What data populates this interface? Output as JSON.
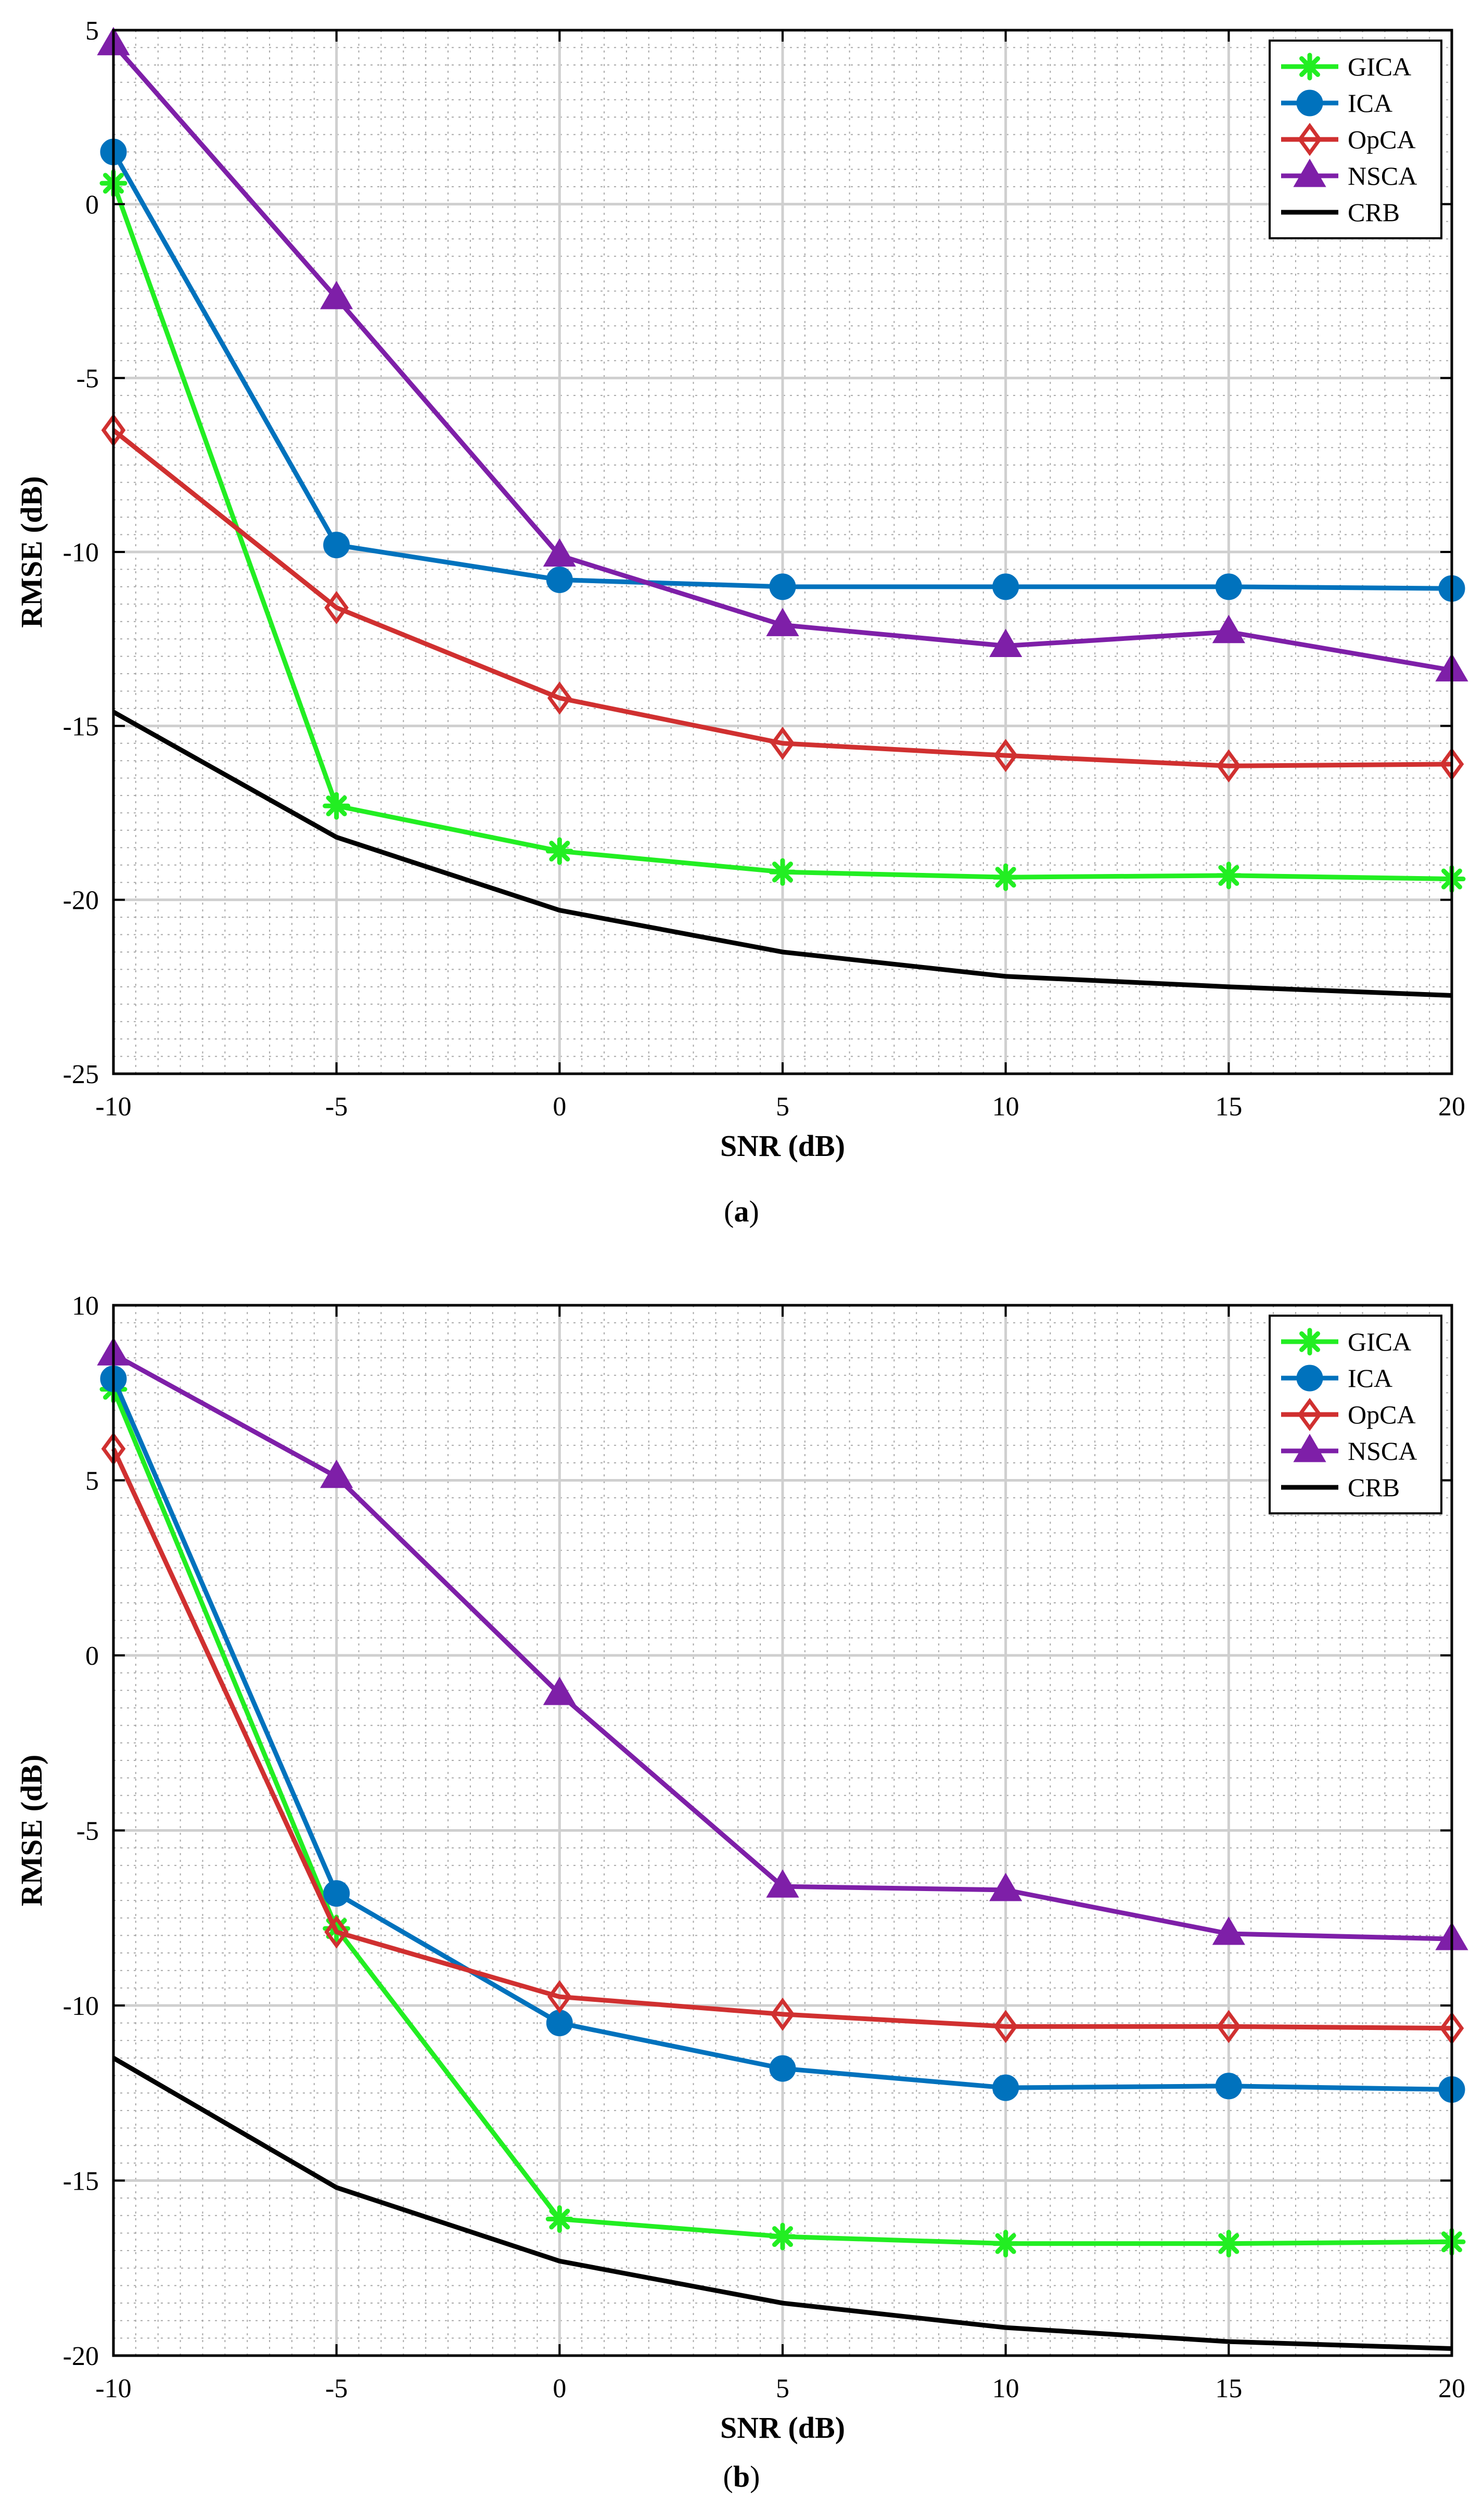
{
  "chart_data": [
    {
      "type": "line",
      "caption_letter": "a",
      "xlabel": "SNR (dB)",
      "ylabel": "RMSE (dB)",
      "xlim": [
        -10,
        20
      ],
      "ylim": [
        -25,
        5
      ],
      "xticks": [
        -10,
        -5,
        0,
        5,
        10,
        15,
        20
      ],
      "yticks": [
        -25,
        -20,
        -15,
        -10,
        -5,
        0,
        5
      ],
      "grid": true,
      "legend_position": "top-right",
      "x": [
        -10,
        -5,
        0,
        5,
        10,
        15,
        20
      ],
      "series": [
        {
          "name": "GICA",
          "color": "#22ee22",
          "marker": "asterisk",
          "values": [
            0.6,
            -17.3,
            -18.6,
            -19.2,
            -19.35,
            -19.3,
            -19.4
          ]
        },
        {
          "name": "ICA",
          "color": "#0072bd",
          "marker": "circle",
          "values": [
            1.5,
            -9.8,
            -10.8,
            -11.0,
            -11.0,
            -11.0,
            -11.05
          ]
        },
        {
          "name": "OpCA",
          "color": "#d03030",
          "marker": "diamond",
          "values": [
            -6.5,
            -11.6,
            -14.2,
            -15.5,
            -15.85,
            -16.15,
            -16.1
          ]
        },
        {
          "name": "NSCA",
          "color": "#7e1fa8",
          "marker": "triangle",
          "values": [
            4.6,
            -2.7,
            -10.1,
            -12.1,
            -12.7,
            -12.3,
            -13.4
          ]
        },
        {
          "name": "CRB",
          "color": "#000000",
          "marker": "none",
          "values": [
            -14.6,
            -18.2,
            -20.3,
            -21.5,
            -22.2,
            -22.5,
            -22.75
          ]
        }
      ]
    },
    {
      "type": "line",
      "caption_letter": "b",
      "xlabel": "SNR (dB)",
      "ylabel": "RMSE (dB)",
      "xlim": [
        -10,
        20
      ],
      "ylim": [
        -20,
        10
      ],
      "xticks": [
        -10,
        -5,
        0,
        5,
        10,
        15,
        20
      ],
      "yticks": [
        -20,
        -15,
        -10,
        -5,
        0,
        5,
        10
      ],
      "grid": true,
      "legend_position": "top-right",
      "x": [
        -10,
        -5,
        0,
        5,
        10,
        15,
        20
      ],
      "series": [
        {
          "name": "GICA",
          "color": "#22ee22",
          "marker": "asterisk",
          "values": [
            7.6,
            -7.8,
            -16.1,
            -16.6,
            -16.8,
            -16.8,
            -16.75
          ]
        },
        {
          "name": "ICA",
          "color": "#0072bd",
          "marker": "circle",
          "values": [
            7.9,
            -6.8,
            -10.5,
            -11.8,
            -12.35,
            -12.3,
            -12.4
          ]
        },
        {
          "name": "OpCA",
          "color": "#d03030",
          "marker": "diamond",
          "values": [
            5.9,
            -7.9,
            -9.75,
            -10.25,
            -10.6,
            -10.6,
            -10.65
          ]
        },
        {
          "name": "NSCA",
          "color": "#7e1fa8",
          "marker": "triangle",
          "values": [
            8.6,
            5.1,
            -1.1,
            -6.6,
            -6.7,
            -7.95,
            -8.1
          ]
        },
        {
          "name": "CRB",
          "color": "#000000",
          "marker": "none",
          "values": [
            -11.5,
            -15.2,
            -17.3,
            -18.5,
            -19.2,
            -19.6,
            -19.8
          ]
        }
      ]
    }
  ]
}
